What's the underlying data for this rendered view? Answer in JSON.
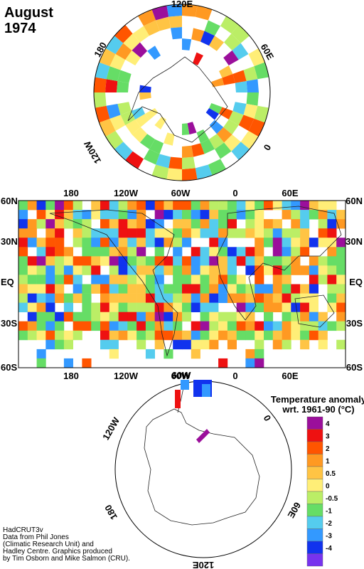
{
  "title": {
    "month": "August",
    "year": "1974"
  },
  "north_map": {
    "lon_labels": [
      "120E",
      "180",
      "60E",
      "120W",
      "0"
    ]
  },
  "main_map": {
    "top_lon_labels": [
      "180",
      "120W",
      "60W",
      "0",
      "60E"
    ],
    "bottom_lon_labels": [
      "180",
      "120W",
      "60W",
      "0",
      "60E"
    ],
    "lat_labels_left": [
      "60N",
      "30N",
      "EQ",
      "30S",
      "60S"
    ],
    "lat_labels_right": [
      "60N",
      "30N",
      "EQ",
      "30S",
      "60S"
    ]
  },
  "south_map": {
    "lon_labels": [
      "60W",
      "120W",
      "0",
      "180",
      "60E",
      "120E"
    ]
  },
  "legend": {
    "title_line1": "Temperature anomaly",
    "title_line2": "wrt. 1961-90  (°C)",
    "entries": [
      {
        "label": "4",
        "color": "#9b0f9b"
      },
      {
        "label": "3",
        "color": "#ee1111"
      },
      {
        "label": "2",
        "color": "#ff5500"
      },
      {
        "label": "1",
        "color": "#ff9922"
      },
      {
        "label": "0.5",
        "color": "#ffc444"
      },
      {
        "label": "0",
        "color": "#ffee77"
      },
      {
        "label": "-0.5",
        "color": "#bbee66"
      },
      {
        "label": "-1",
        "color": "#66dd66"
      },
      {
        "label": "-2",
        "color": "#55ccee"
      },
      {
        "label": "-3",
        "color": "#3399ff"
      },
      {
        "label": "-4",
        "color": "#1133ee"
      },
      {
        "label": "",
        "color": "#7733ee"
      }
    ]
  },
  "credits": [
    "HadCRUT3v",
    "Data from Phil Jones",
    "(Climatic Research Unit) and",
    "Hadley Centre.  Graphics produced",
    "by Tim Osborn and Mike Salmon (CRU)."
  ],
  "colors": {
    "ocean_bg": "#ffffff",
    "coast": "#222222"
  }
}
